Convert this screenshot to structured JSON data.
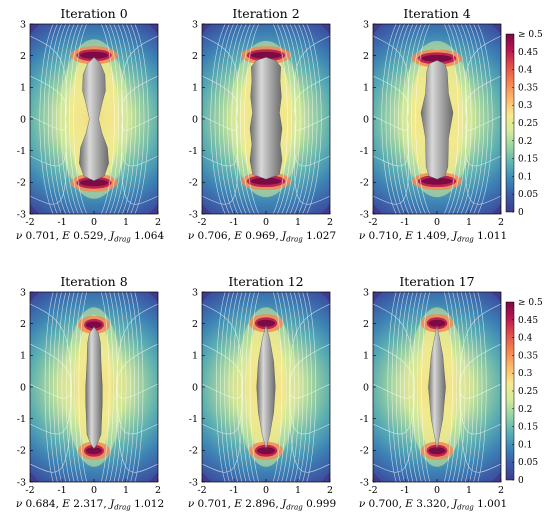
{
  "figure": {
    "colormap": [
      "#3f3c8f",
      "#3c5aa6",
      "#3d86b7",
      "#5bb3b4",
      "#97d4a4",
      "#d4ec9a",
      "#f7e98c",
      "#fbb86b",
      "#f5844f",
      "#e1504b",
      "#b8174f",
      "#7b0a45"
    ],
    "background": "#ffffff",
    "shape_fill": "#9c9c9c",
    "streamline_color": "#ffffff"
  },
  "chart_data": [
    {
      "type": "heatmap",
      "title": "Iteration 0",
      "caption": "ν 0.701, E 0.529, J_drag 1.064",
      "caption_parts": {
        "nu_label": "ν",
        "nu": "0.701,",
        "e_label": "E",
        "e": "0.529,",
        "j_label": "J",
        "j_sub": "drag",
        "j": "1.064"
      },
      "xlim": [
        -2,
        2
      ],
      "ylim": [
        -3,
        3
      ],
      "x_ticks": [
        "-2",
        "-1",
        "0",
        "1",
        "2"
      ],
      "y_ticks": [
        "-3",
        "-2",
        "-1",
        "0",
        "1",
        "2",
        "3"
      ],
      "shape": "peanut",
      "shape_profile": [
        [
          -1.95,
          0.0
        ],
        [
          -1.8,
          0.32
        ],
        [
          -1.4,
          0.46
        ],
        [
          -0.9,
          0.42
        ],
        [
          -0.45,
          0.25
        ],
        [
          0.0,
          0.14
        ],
        [
          0.45,
          0.24
        ],
        [
          0.9,
          0.36
        ],
        [
          1.4,
          0.34
        ],
        [
          1.75,
          0.2
        ],
        [
          1.95,
          0.0
        ]
      ]
    },
    {
      "type": "heatmap",
      "title": "Iteration 2",
      "caption": "ν 0.706, E 0.969, J_drag 1.027",
      "caption_parts": {
        "nu_label": "ν",
        "nu": "0.706,",
        "e_label": "E",
        "e": "0.969,",
        "j_label": "J",
        "j_sub": "drag",
        "j": "1.027"
      },
      "xlim": [
        -2,
        2
      ],
      "ylim": [
        -3,
        3
      ],
      "x_ticks": [
        "-2",
        "-1",
        "0",
        "1",
        "2"
      ],
      "y_ticks": [
        "-3",
        "-2",
        "-1",
        "0",
        "1",
        "2",
        "3"
      ],
      "shape": "wavy capsule",
      "shape_profile": [
        [
          -1.9,
          0.0
        ],
        [
          -1.75,
          0.42
        ],
        [
          -1.3,
          0.5
        ],
        [
          -0.8,
          0.44
        ],
        [
          -0.3,
          0.5
        ],
        [
          0.2,
          0.42
        ],
        [
          0.7,
          0.48
        ],
        [
          1.2,
          0.44
        ],
        [
          1.65,
          0.46
        ],
        [
          1.85,
          0.3
        ],
        [
          1.95,
          0.0
        ]
      ]
    },
    {
      "type": "heatmap",
      "title": "Iteration 4",
      "caption": "ν 0.710, E 1.409, J_drag 1.011",
      "caption_parts": {
        "nu_label": "ν",
        "nu": "0.710,",
        "e_label": "E",
        "e": "1.409,",
        "j_label": "J",
        "j_sub": "drag",
        "j": "1.011"
      },
      "xlim": [
        -2,
        2
      ],
      "ylim": [
        -3,
        3
      ],
      "x_ticks": [
        "-2",
        "-1",
        "0",
        "1",
        "2"
      ],
      "y_ticks": [
        "-3",
        "-2",
        "-1",
        "0",
        "1",
        "2",
        "3"
      ],
      "shape": "tapered cylinder",
      "shape_profile": [
        [
          -1.9,
          0.0
        ],
        [
          -1.8,
          0.25
        ],
        [
          -1.5,
          0.34
        ],
        [
          -0.6,
          0.36
        ],
        [
          0.2,
          0.5
        ],
        [
          0.8,
          0.36
        ],
        [
          1.5,
          0.32
        ],
        [
          1.75,
          0.24
        ],
        [
          1.85,
          0.0
        ]
      ]
    },
    {
      "type": "heatmap",
      "title": "Iteration 8",
      "caption": "ν 0.684, E 2.317, J_drag 1.012",
      "caption_parts": {
        "nu_label": "ν",
        "nu": "0.684,",
        "e_label": "E",
        "e": "2.317,",
        "j_label": "J",
        "j_sub": "drag",
        "j": "1.012"
      },
      "xlim": [
        -2,
        2
      ],
      "ylim": [
        -3,
        3
      ],
      "x_ticks": [
        "-2",
        "-1",
        "0",
        "1",
        "2"
      ],
      "y_ticks": [
        "-3",
        "-2",
        "-1",
        "0",
        "1",
        "2",
        "3"
      ],
      "shape": "slender body",
      "shape_profile": [
        [
          -1.95,
          0.0
        ],
        [
          -1.8,
          0.1
        ],
        [
          -1.5,
          0.22
        ],
        [
          -0.5,
          0.26
        ],
        [
          0.0,
          0.26
        ],
        [
          0.8,
          0.22
        ],
        [
          1.4,
          0.2
        ],
        [
          1.7,
          0.14
        ],
        [
          1.9,
          0.0
        ]
      ]
    },
    {
      "type": "heatmap",
      "title": "Iteration 12",
      "caption": "ν 0.701, E 2.896, J_drag 0.999",
      "caption_parts": {
        "nu_label": "ν",
        "nu": "0.701,",
        "e_label": "E",
        "e": "2.896,",
        "j_label": "J",
        "j_sub": "drag",
        "j": "0.999"
      },
      "xlim": [
        -2,
        2
      ],
      "ylim": [
        -3,
        3
      ],
      "x_ticks": [
        "-2",
        "-1",
        "0",
        "1",
        "2"
      ],
      "y_ticks": [
        "-3",
        "-2",
        "-1",
        "0",
        "1",
        "2",
        "3"
      ],
      "shape": "spindle",
      "shape_profile": [
        [
          -1.95,
          0.0
        ],
        [
          -1.5,
          0.12
        ],
        [
          -0.8,
          0.24
        ],
        [
          0.0,
          0.29
        ],
        [
          0.8,
          0.24
        ],
        [
          1.5,
          0.12
        ],
        [
          1.95,
          0.0
        ]
      ]
    },
    {
      "type": "heatmap",
      "title": "Iteration 17",
      "caption": "ν 0.700, E 3.320, J_drag 1.001",
      "caption_parts": {
        "nu_label": "ν",
        "nu": "0.700,",
        "e_label": "E",
        "e": "3.320,",
        "j_label": "J",
        "j_sub": "drag",
        "j": "1.001"
      },
      "xlim": [
        -2,
        2
      ],
      "ylim": [
        -3,
        3
      ],
      "x_ticks": [
        "-2",
        "-1",
        "0",
        "1",
        "2"
      ],
      "y_ticks": [
        "-3",
        "-2",
        "-1",
        "0",
        "1",
        "2",
        "3"
      ],
      "shape": "double-pointed spindle",
      "shape_profile": [
        [
          -1.95,
          0.0
        ],
        [
          -1.0,
          0.18
        ],
        [
          0.0,
          0.27
        ],
        [
          1.0,
          0.18
        ],
        [
          1.95,
          0.0
        ]
      ]
    }
  ],
  "colorbars": [
    {
      "ticks": [
        "0",
        "0.05",
        "0.1",
        "0.15",
        "0.2",
        "0.25",
        "0.3",
        "0.35",
        "0.4",
        "0.45"
      ],
      "tick_values": [
        0,
        0.05,
        0.1,
        0.15,
        0.2,
        0.25,
        0.3,
        0.35,
        0.4,
        0.45
      ],
      "max_label": "≥ 0.5",
      "range": [
        0,
        0.5
      ]
    },
    {
      "ticks": [
        "0",
        "0.05",
        "0.1",
        "0.15",
        "0.2",
        "0.25",
        "0.3",
        "0.35",
        "0.4",
        "0.45"
      ],
      "tick_values": [
        0,
        0.05,
        0.1,
        0.15,
        0.2,
        0.25,
        0.3,
        0.35,
        0.4,
        0.45
      ],
      "max_label": "≥ 0.5",
      "range": [
        0,
        0.5
      ]
    }
  ]
}
